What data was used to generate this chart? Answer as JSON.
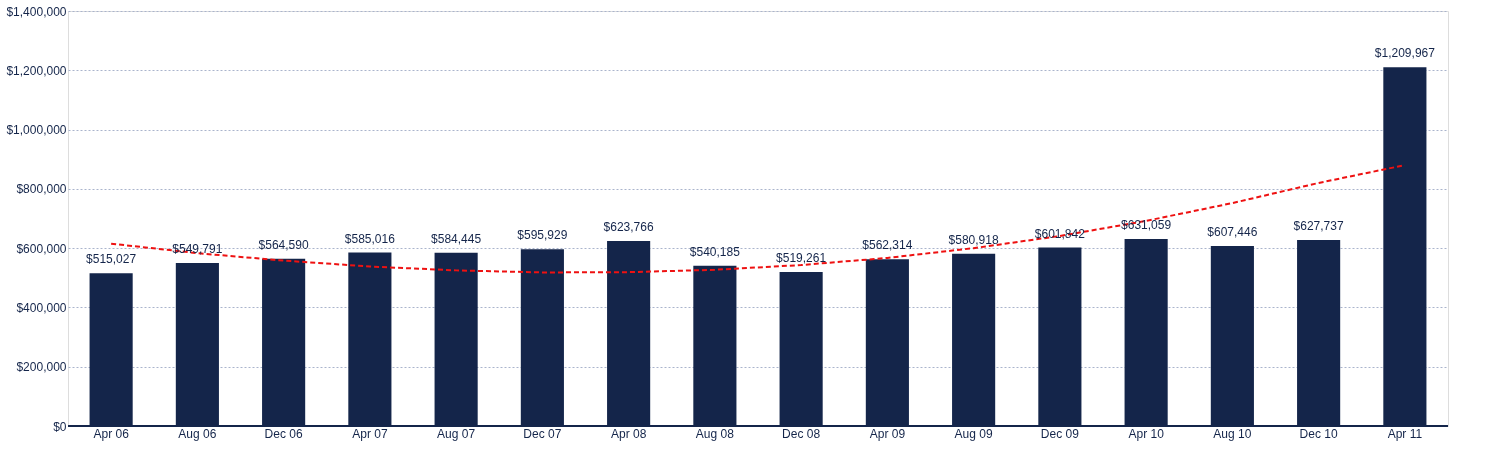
{
  "chart_data": {
    "type": "bar",
    "categories": [
      "Apr 06",
      "Aug 06",
      "Dec 06",
      "Apr 07",
      "Aug 07",
      "Dec 07",
      "Apr 08",
      "Aug 08",
      "Dec 08",
      "Apr 09",
      "Aug 09",
      "Dec 09",
      "Apr 10",
      "Aug 10",
      "Dec 10",
      "Apr 11"
    ],
    "series": [
      {
        "color": "#14254a",
        "values": [
          515027,
          549791,
          564590,
          585016,
          584445,
          595929,
          623766,
          540185,
          519261,
          562314,
          580918,
          601842,
          631059,
          607446,
          627737,
          1209967
        ],
        "value_labels": [
          "$515,027",
          "$549,791",
          "$564,590",
          "$585,016",
          "$584,445",
          "$595,929",
          "$623,766",
          "$540,185",
          "$519,261",
          "$562,314",
          "$580,918",
          "$601,842",
          "$631,059",
          "$607,446",
          "$627,737",
          "$1,209,967"
        ]
      },
      {
        "type": "line",
        "color": "#ee1111",
        "line_style": "dashed",
        "values": [
          615000,
          583000,
          558000,
          538000,
          525000,
          518000,
          519000,
          527000,
          543000,
          567000,
          600000,
          641000,
          692000,
          752000,
          820000,
          880000
        ]
      }
    ],
    "ylim": [
      0,
      1400000
    ],
    "yticks": [
      {
        "value": 0,
        "label": "$0"
      },
      {
        "value": 200000,
        "label": "$200,000"
      },
      {
        "value": 400000,
        "label": "$400,000"
      },
      {
        "value": 600000,
        "label": "$600,000"
      },
      {
        "value": 800000,
        "label": "$800,000"
      },
      {
        "value": 1000000,
        "label": "$1,000,000"
      },
      {
        "value": 1200000,
        "label": "$1,200,000"
      },
      {
        "value": 1400000,
        "label": "$1,400,000"
      }
    ],
    "grid": "y"
  }
}
